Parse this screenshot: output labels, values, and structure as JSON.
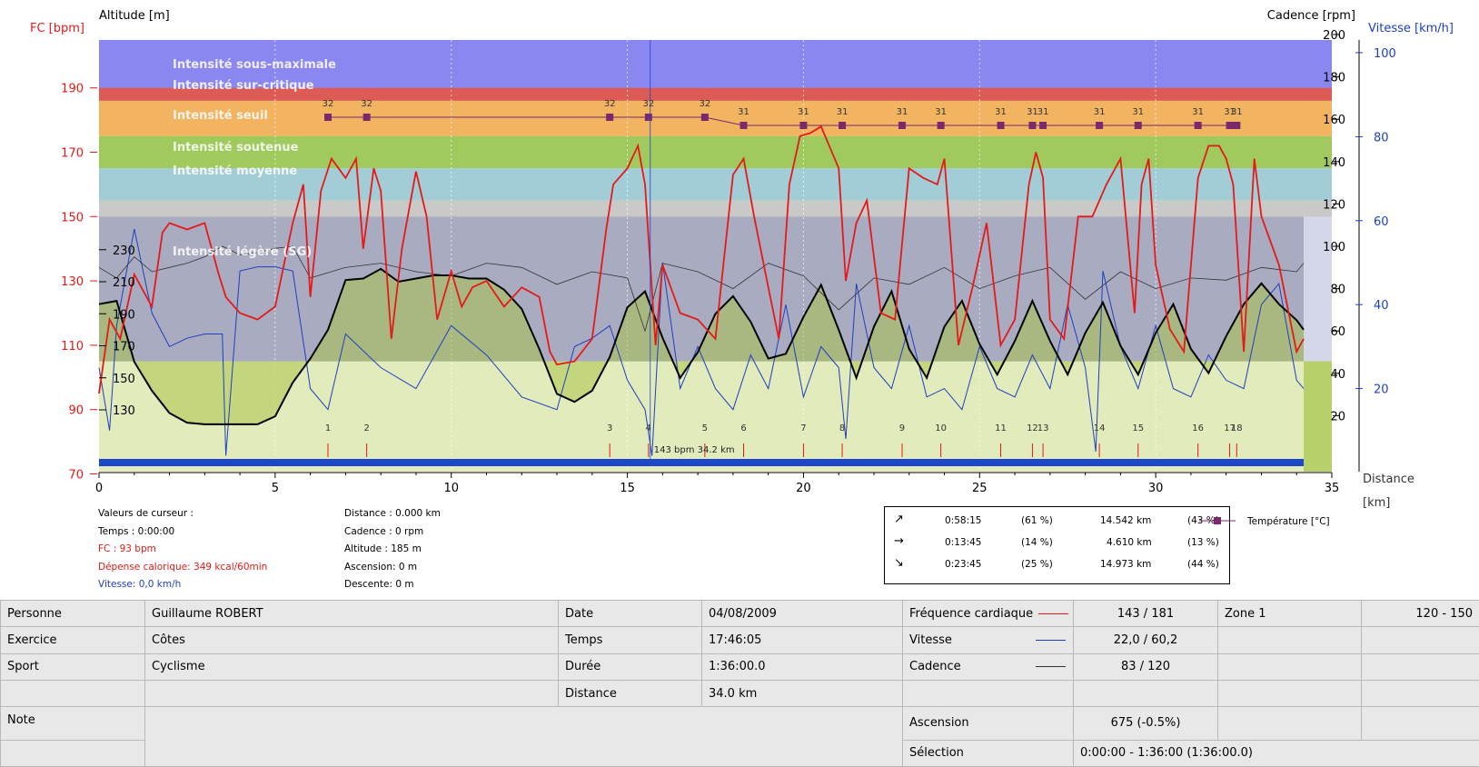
{
  "axes": {
    "fc_label": "FC [bpm]",
    "altitude_label": "Altitude  [m]",
    "cadence_label": "Cadence [rpm]",
    "speed_label": "Vitesse [km/h]",
    "distance_label": "Distance",
    "distance_unit": "[km]"
  },
  "colors": {
    "hr": "#e51919",
    "speed": "#1e3fbf",
    "cadence": "#333333",
    "altitude": "#000000",
    "temperature": "#7a2a6a",
    "fc_axis": "#e51919",
    "speed_axis": "#1e3fbf"
  },
  "zones": [
    {
      "label": "Intensité sous-maximale",
      "color": "#e0584c"
    },
    {
      "label": "Intensité sur-critique",
      "color": "#f2b15c"
    },
    {
      "label": "Intensité seuil",
      "color": "#9cc759"
    },
    {
      "label": "Intensité soutenue",
      "color": "#9ecbd8"
    },
    {
      "label": "Intensité moyenne",
      "color": "#c7c7c7"
    },
    {
      "label": "Intensité légère (SG)",
      "color": "#a5a9c1"
    }
  ],
  "chart_data": {
    "type": "line",
    "x_axis": {
      "label": "Distance [km]",
      "range": [
        0,
        35
      ],
      "ticks": [
        0,
        5,
        10,
        15,
        20,
        25,
        30,
        35
      ]
    },
    "y_axes": {
      "hr": {
        "label": "FC [bpm]",
        "range": [
          60,
          196
        ],
        "ticks": [
          70,
          90,
          110,
          130,
          150,
          170,
          190
        ]
      },
      "altitude": {
        "label": "Altitude  [m]",
        "ticks": [
          130,
          150,
          170,
          190,
          210,
          230
        ]
      },
      "cadence": {
        "label": "Cadence [rpm]",
        "ticks": [
          20,
          40,
          60,
          80,
          100,
          120,
          140,
          160,
          180,
          200
        ]
      },
      "speed": {
        "label": "Vitesse [km/h]",
        "ticks": [
          20,
          40,
          60,
          80,
          100
        ]
      }
    },
    "hr_zones_bpm": [
      [
        190,
        186,
        "Intensité sous-maximale"
      ],
      [
        186,
        175,
        "Intensité sur-critique"
      ],
      [
        175,
        165,
        "Intensité seuil"
      ],
      [
        165,
        155,
        "Intensité soutenue"
      ],
      [
        155,
        150,
        "Intensité moyenne"
      ],
      [
        150,
        105,
        "Intensité légère (SG)"
      ]
    ],
    "series": [
      {
        "name": "Fréquence cardiaque",
        "axis": "hr",
        "x": [
          0,
          0.3,
          0.6,
          1.0,
          1.5,
          1.8,
          2.0,
          2.5,
          3.0,
          3.4,
          3.6,
          4.0,
          4.5,
          5.0,
          5.5,
          5.8,
          6.0,
          6.3,
          6.6,
          7.0,
          7.3,
          7.5,
          7.8,
          8.0,
          8.3,
          8.6,
          9.0,
          9.3,
          9.6,
          10.0,
          10.3,
          10.6,
          11.0,
          11.5,
          12.0,
          12.5,
          12.8,
          13.0,
          13.5,
          14.0,
          14.4,
          14.6,
          15.0,
          15.3,
          15.5,
          15.8,
          16.0,
          16.5,
          17.0,
          17.5,
          18.0,
          18.3,
          18.6,
          19.0,
          19.3,
          19.6,
          19.9,
          20.2,
          20.5,
          21.0,
          21.2,
          21.5,
          21.8,
          22.2,
          22.6,
          23.0,
          23.4,
          23.8,
          24.0,
          24.4,
          24.8,
          25.2,
          25.6,
          26.0,
          26.4,
          26.6,
          26.8,
          27.0,
          27.4,
          27.8,
          28.2,
          28.6,
          29.0,
          29.4,
          29.6,
          29.8,
          30.0,
          30.4,
          30.8,
          31.2,
          31.5,
          31.8,
          32.0,
          32.2,
          32.5,
          32.8,
          33.0,
          33.5,
          34.0,
          34.2
        ],
        "values": [
          95,
          118,
          112,
          132,
          122,
          145,
          148,
          146,
          148,
          132,
          125,
          120,
          118,
          122,
          148,
          160,
          125,
          158,
          168,
          162,
          168,
          140,
          165,
          158,
          112,
          140,
          164,
          150,
          118,
          133,
          122,
          128,
          130,
          122,
          128,
          125,
          108,
          104,
          105,
          112,
          146,
          160,
          165,
          172,
          160,
          110,
          135,
          120,
          118,
          112,
          163,
          168,
          150,
          128,
          112,
          160,
          175,
          176,
          178,
          165,
          130,
          148,
          155,
          120,
          118,
          165,
          162,
          160,
          168,
          110,
          128,
          148,
          110,
          118,
          160,
          170,
          162,
          118,
          112,
          150,
          150,
          160,
          168,
          120,
          160,
          168,
          135,
          115,
          108,
          162,
          172,
          172,
          168,
          160,
          108,
          168,
          150,
          135,
          108,
          112
        ]
      },
      {
        "name": "Altitude",
        "axis": "altitude",
        "x": [
          0,
          0.5,
          1.0,
          1.5,
          2.0,
          2.5,
          3.0,
          3.5,
          4.0,
          4.5,
          5.0,
          5.5,
          6.0,
          6.5,
          7.0,
          7.5,
          8.0,
          8.5,
          9.0,
          9.5,
          10.0,
          10.5,
          11.0,
          11.5,
          12.0,
          12.5,
          13.0,
          13.5,
          14.0,
          14.5,
          15.0,
          15.5,
          16.0,
          16.5,
          17.0,
          17.5,
          18.0,
          18.5,
          19.0,
          19.5,
          20.0,
          20.5,
          21.0,
          21.5,
          22.0,
          22.5,
          23.0,
          23.5,
          24.0,
          24.5,
          25.0,
          25.5,
          26.0,
          26.5,
          27.0,
          27.5,
          28.0,
          28.5,
          29.0,
          29.5,
          30.0,
          30.5,
          31.0,
          31.5,
          32.0,
          32.5,
          33.0,
          33.5,
          34.0,
          34.2
        ],
        "values": [
          196,
          198,
          160,
          142,
          128,
          122,
          121,
          121,
          121,
          121,
          126,
          147,
          162,
          180,
          211,
          212,
          218,
          210,
          212,
          214,
          214,
          212,
          212,
          205,
          193,
          168,
          140,
          135,
          142,
          163,
          194,
          204,
          175,
          150,
          166,
          190,
          201,
          185,
          162,
          165,
          188,
          208,
          180,
          150,
          182,
          204,
          168,
          150,
          182,
          198,
          171,
          152,
          173,
          198,
          173,
          152,
          178,
          197,
          170,
          152,
          178,
          196,
          168,
          153,
          176,
          196,
          209,
          196,
          186,
          180
        ]
      },
      {
        "name": "Vitesse",
        "axis": "speed",
        "x": [
          0,
          0.3,
          0.5,
          1.0,
          1.5,
          2.0,
          2.5,
          3.0,
          3.5,
          3.6,
          4.0,
          4.5,
          5.0,
          5.5,
          6.0,
          6.5,
          7.0,
          8.0,
          9.0,
          10.0,
          11.0,
          12.0,
          13.0,
          13.5,
          14.0,
          14.5,
          15.0,
          15.5,
          15.7,
          16.0,
          16.5,
          17.0,
          17.5,
          18.0,
          18.5,
          19.0,
          19.5,
          20.0,
          20.5,
          21.0,
          21.2,
          21.5,
          22.0,
          22.5,
          23.0,
          23.5,
          24.0,
          24.5,
          25.0,
          25.5,
          26.0,
          26.5,
          27.0,
          27.5,
          28.0,
          28.3,
          28.5,
          29.0,
          29.5,
          30.0,
          30.5,
          31.0,
          31.5,
          32.0,
          32.5,
          33.0,
          33.5,
          34.0,
          34.2
        ],
        "values": [
          25,
          10,
          35,
          58,
          38,
          30,
          32,
          33,
          33,
          4,
          48,
          49,
          49,
          48,
          20,
          15,
          33,
          25,
          20,
          35,
          28,
          18,
          15,
          30,
          32,
          35,
          22,
          15,
          4,
          50,
          20,
          30,
          20,
          15,
          28,
          20,
          40,
          18,
          30,
          25,
          8,
          45,
          25,
          20,
          35,
          18,
          20,
          15,
          30,
          20,
          18,
          28,
          20,
          40,
          25,
          5,
          48,
          30,
          20,
          35,
          20,
          18,
          28,
          22,
          20,
          40,
          45,
          22,
          20
        ]
      },
      {
        "name": "Cadence",
        "axis": "cadence",
        "x": [
          0,
          0.5,
          1.0,
          1.5,
          2.0,
          2.5,
          3.0,
          3.5,
          4.0,
          4.5,
          5.0,
          5.5,
          6.0,
          7.0,
          8.0,
          9.0,
          10.0,
          11.0,
          12.0,
          13.0,
          14.0,
          15.0,
          15.5,
          16.0,
          17.0,
          18.0,
          19.0,
          20.0,
          21.0,
          22.0,
          23.0,
          24.0,
          25.0,
          26.0,
          27.0,
          28.0,
          29.0,
          30.0,
          31.0,
          32.0,
          33.0,
          34.0,
          34.2
        ],
        "values": [
          90,
          85,
          95,
          88,
          90,
          92,
          95,
          100,
          96,
          97,
          99,
          100,
          85,
          90,
          92,
          88,
          86,
          92,
          90,
          82,
          88,
          85,
          60,
          92,
          88,
          80,
          92,
          86,
          70,
          85,
          82,
          90,
          80,
          86,
          90,
          75,
          88,
          80,
          85,
          84,
          90,
          88,
          92
        ]
      }
    ],
    "laps": [
      "1",
      "2",
      "3",
      "4",
      "5",
      "6",
      "7",
      "8",
      "9",
      "10",
      "11",
      "12",
      "13",
      "14",
      "15",
      "16",
      "17",
      "18"
    ],
    "lap_distances_km": [
      6.5,
      7.6,
      14.5,
      15.6,
      17.2,
      18.3,
      20.0,
      21.1,
      22.8,
      23.9,
      25.6,
      26.5,
      26.8,
      28.4,
      29.5,
      31.2,
      32.1,
      32.3
    ],
    "temperature": {
      "name": "Température [°C]",
      "values": [
        "32",
        "32",
        "32",
        "32",
        "32",
        "31",
        "31",
        "31",
        "31",
        "31",
        "31",
        "31",
        "31",
        "31",
        "31",
        "31",
        "31",
        "31"
      ]
    },
    "marker_label": "143 bpm 34.2 km"
  },
  "cursor": {
    "title": "Valeurs de curseur :",
    "time": "Temps : 0:00:00",
    "fc": "FC : 93 bpm",
    "calories": "Dépense calorique: 349 kcal/60min",
    "speed": "Vitesse: 0,0 km/h",
    "distance": "Distance : 0.000 km",
    "cadence": "Cadence : 0 rpm",
    "altitude": "Altitude : 185 m",
    "ascent": "Ascension: 0 m",
    "descent": "Descente: 0 m"
  },
  "stats": [
    {
      "icon": "↗",
      "time": "0:58:15",
      "time_pct": "(61 %)",
      "dist": "14.542 km",
      "dist_pct": "(43 %)"
    },
    {
      "icon": "→",
      "time": "0:13:45",
      "time_pct": "(14 %)",
      "dist": "4.610 km",
      "dist_pct": "(13 %)"
    },
    {
      "icon": "↘",
      "time": "0:23:45",
      "time_pct": "(25 %)",
      "dist": "14.973 km",
      "dist_pct": "(44 %)"
    }
  ],
  "legend": {
    "temperature": "Température [°C]"
  },
  "info": {
    "personne_label": "Personne",
    "personne": "Guillaume ROBERT",
    "date_label": "Date",
    "date": "04/08/2009",
    "fc_label": "Fréquence cardiaque",
    "fc": "143 / 181",
    "zone_label": "Zone 1",
    "zone": "120 - 150",
    "exercice_label": "Exercice",
    "exercice": "Côtes",
    "temps_label": "Temps",
    "temps": "17:46:05",
    "vitesse_label": "Vitesse",
    "vitesse": "22,0 / 60,2",
    "sport_label": "Sport",
    "sport": "Cyclisme",
    "duree_label": "Durée",
    "duree": "1:36:00.0",
    "cadence_label": "Cadence",
    "cadence": "83 / 120",
    "distance_label": "Distance",
    "distance": "34.0 km",
    "note_label": "Note",
    "ascension_label": "Ascension",
    "ascension": "675 (-0.5%)",
    "selection_label": "Sélection",
    "selection": "0:00:00 - 1:36:00 (1:36:00.0)"
  }
}
